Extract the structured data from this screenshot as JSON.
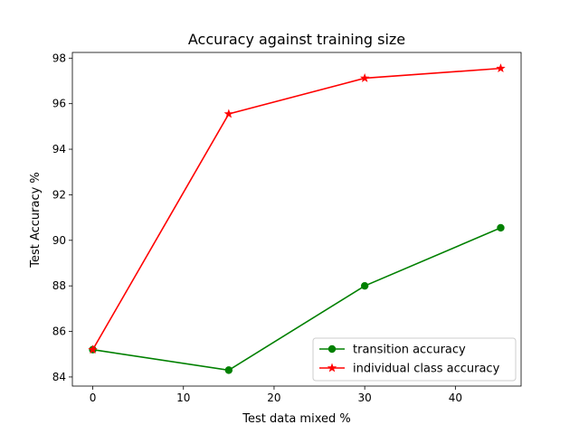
{
  "chart_data": {
    "type": "line",
    "title": "Accuracy against training size",
    "xlabel": "Test data mixed %",
    "ylabel": "Test Accuracy %",
    "x": [
      0,
      15,
      30,
      45
    ],
    "xlim": [
      -2.25,
      47.25
    ],
    "ylim": [
      83.6,
      98.25
    ],
    "xticks": [
      0,
      10,
      20,
      30,
      40
    ],
    "yticks": [
      84,
      86,
      88,
      90,
      92,
      94,
      96,
      98
    ],
    "grid": false,
    "legend_position": "lower-right",
    "series": [
      {
        "name": "transition accuracy",
        "values": [
          85.2,
          84.3,
          88.0,
          90.55
        ],
        "color": "#008000",
        "marker": "circle"
      },
      {
        "name": "individual class accuracy",
        "values": [
          85.2,
          95.55,
          97.12,
          97.55
        ],
        "color": "#ff0000",
        "marker": "star"
      }
    ]
  }
}
